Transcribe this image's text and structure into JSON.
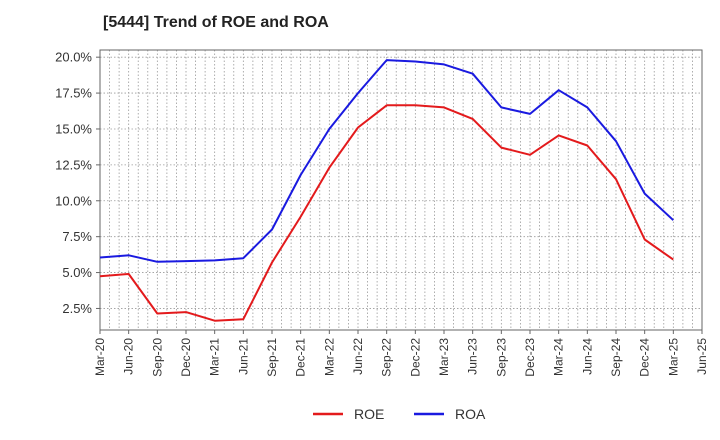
{
  "chart_data": {
    "type": "line",
    "title": "[5444]  Trend of ROE and ROA",
    "xlabel": "",
    "ylabel": "",
    "ylim": [
      1.0,
      20.5
    ],
    "grid": true,
    "legend_position": "bottom-center",
    "y_ticks": [
      2.5,
      5.0,
      7.5,
      10.0,
      12.5,
      15.0,
      17.5,
      20.0
    ],
    "y_tick_labels": [
      "2.5%",
      "5.0%",
      "7.5%",
      "10.0%",
      "12.5%",
      "15.0%",
      "17.5%",
      "20.0%"
    ],
    "x_tick_labels": [
      "Mar-20",
      "Jun-20",
      "Sep-20",
      "Dec-20",
      "Mar-21",
      "Jun-21",
      "Sep-21",
      "Dec-21",
      "Mar-22",
      "Jun-22",
      "Sep-22",
      "Dec-22",
      "Mar-23",
      "Jun-23",
      "Sep-23",
      "Dec-23",
      "Mar-24",
      "Jun-24",
      "Sep-24",
      "Dec-24",
      "Mar-25",
      "Jun-25"
    ],
    "x": [
      "Mar-20",
      "Jun-20",
      "Sep-20",
      "Dec-20",
      "Mar-21",
      "Jun-21",
      "Sep-21",
      "Dec-21",
      "Mar-22",
      "Jun-22",
      "Sep-22",
      "Dec-22",
      "Mar-23",
      "Jun-23",
      "Sep-23",
      "Dec-23",
      "Mar-24",
      "Jun-24",
      "Sep-24",
      "Dec-24",
      "Mar-25"
    ],
    "series": [
      {
        "name": "ROE",
        "color": "#e31a1c",
        "values": [
          4.75,
          4.9,
          2.15,
          2.25,
          1.65,
          1.75,
          5.7,
          8.9,
          12.3,
          15.1,
          16.65,
          16.65,
          16.5,
          15.7,
          13.7,
          13.2,
          14.55,
          13.85,
          11.5,
          7.3,
          5.9
        ]
      },
      {
        "name": "ROA",
        "color": "#1a1ae0",
        "values": [
          6.05,
          6.2,
          5.75,
          5.8,
          5.85,
          6.0,
          8.0,
          11.8,
          15.0,
          17.5,
          19.8,
          19.7,
          19.5,
          18.85,
          16.5,
          16.05,
          17.7,
          16.5,
          14.15,
          10.5,
          8.65
        ]
      }
    ]
  }
}
